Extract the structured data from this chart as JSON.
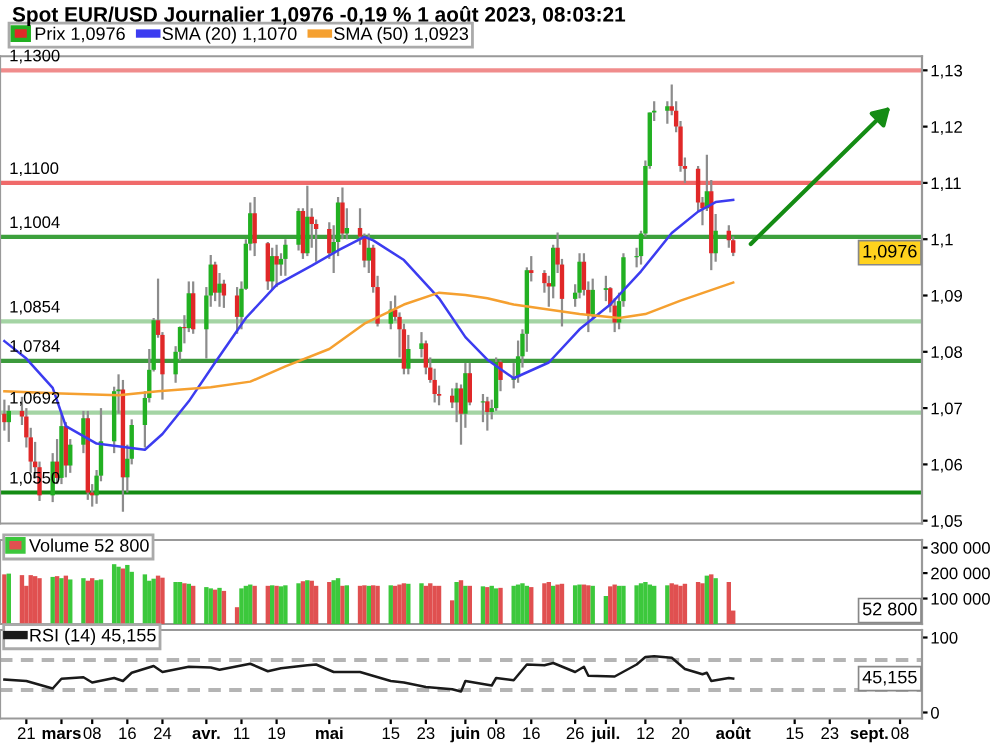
{
  "chart_data": [
    {
      "type": "candlestick",
      "title": "Spot EUR/USD Journalier 1,0976 -0,19 % 1 août 2023, 08:03:21",
      "x": [
        "2023-02-16",
        "2023-02-17",
        "2023-02-20",
        "2023-02-21",
        "2023-02-22",
        "2023-02-23",
        "2023-02-24",
        "2023-02-27",
        "2023-02-28",
        "2023-03-01",
        "2023-03-02",
        "2023-03-03",
        "2023-03-06",
        "2023-03-07",
        "2023-03-08",
        "2023-03-09",
        "2023-03-10",
        "2023-03-13",
        "2023-03-14",
        "2023-03-15",
        "2023-03-16",
        "2023-03-17",
        "2023-03-20",
        "2023-03-21",
        "2023-03-22",
        "2023-03-23",
        "2023-03-24",
        "2023-03-27",
        "2023-03-28",
        "2023-03-29",
        "2023-03-30",
        "2023-03-31",
        "2023-04-03",
        "2023-04-04",
        "2023-04-05",
        "2023-04-06",
        "2023-04-07",
        "2023-04-10",
        "2023-04-11",
        "2023-04-12",
        "2023-04-13",
        "2023-04-14",
        "2023-04-17",
        "2023-04-18",
        "2023-04-19",
        "2023-04-20",
        "2023-04-21",
        "2023-04-24",
        "2023-04-25",
        "2023-04-26",
        "2023-04-27",
        "2023-04-28",
        "2023-05-01",
        "2023-05-02",
        "2023-05-03",
        "2023-05-04",
        "2023-05-05",
        "2023-05-08",
        "2023-05-09",
        "2023-05-10",
        "2023-05-11",
        "2023-05-12",
        "2023-05-15",
        "2023-05-16",
        "2023-05-17",
        "2023-05-18",
        "2023-05-19",
        "2023-05-22",
        "2023-05-23",
        "2023-05-24",
        "2023-05-25",
        "2023-05-26",
        "2023-05-29",
        "2023-05-30",
        "2023-05-31",
        "2023-06-01",
        "2023-06-02",
        "2023-06-05",
        "2023-06-06",
        "2023-06-07",
        "2023-06-08",
        "2023-06-09",
        "2023-06-12",
        "2023-06-13",
        "2023-06-14",
        "2023-06-15",
        "2023-06-16",
        "2023-06-19",
        "2023-06-20",
        "2023-06-21",
        "2023-06-22",
        "2023-06-23",
        "2023-06-26",
        "2023-06-27",
        "2023-06-28",
        "2023-06-29",
        "2023-06-30",
        "2023-07-03",
        "2023-07-04",
        "2023-07-05",
        "2023-07-06",
        "2023-07-07",
        "2023-07-10",
        "2023-07-11",
        "2023-07-12",
        "2023-07-13",
        "2023-07-14",
        "2023-07-17",
        "2023-07-18",
        "2023-07-19",
        "2023-07-20",
        "2023-07-21",
        "2023-07-24",
        "2023-07-25",
        "2023-07-26",
        "2023-07-27",
        "2023-07-28",
        "2023-07-31",
        "2023-08-01"
      ],
      "series": [
        {
          "type": "candlestick",
          "name": "Prix 1,0976",
          "colors": [
            "#e02828",
            "#22b022",
            "#e02828",
            "#e02828",
            "#e02828",
            "#e02828",
            "#e02828",
            "#22b022",
            "#e02828",
            "#22b022",
            "#e02828",
            "#22b022",
            "#22b022",
            "#e02828",
            "#e02828",
            "#22b022",
            "#22b022",
            "#22b022",
            "#22b022",
            "#e02828",
            "#22b022",
            "#22b022",
            "#22b022",
            "#22b022",
            "#22b022",
            "#e02828",
            "#e02828",
            "#22b022",
            "#22b022",
            "#e02828",
            "#22b022",
            "#e02828",
            "#22b022",
            "#22b022",
            "#e02828",
            "#22b022",
            "#e02828",
            "#e02828",
            "#22b022",
            "#22b022",
            "#22b022",
            "#e02828",
            "#e02828",
            "#22b022",
            "#e02828",
            "#22b022",
            "#22b022",
            "#22b022",
            "#e02828",
            "#22b022",
            "#e02828",
            "#e02828",
            "#e02828",
            "#22b022",
            "#22b022",
            "#e02828",
            "#22b022",
            "#e02828",
            "#e02828",
            "#22b022",
            "#e02828",
            "#e02828",
            "#22b022",
            "#e02828",
            "#e02828",
            "#e02828",
            "#22b022",
            "#22b022",
            "#e02828",
            "#e02828",
            "#e02828",
            "#e02828",
            "#e02828",
            "#22b022",
            "#e02828",
            "#22b022",
            "#e02828",
            "#22b022",
            "#e02828",
            "#22b022",
            "#22b022",
            "#e02828",
            "#22b022",
            "#22b022",
            "#22b022",
            "#22b022",
            "#e02828",
            "#e02828",
            "#e02828",
            "#22b022",
            "#e02828",
            "#e02828",
            "#22b022",
            "#22b022",
            "#e02828",
            "#e02828",
            "#22b022",
            "#22b022",
            "#e02828",
            "#e02828",
            "#22b022",
            "#22b022",
            "#22b022",
            "#22b022",
            "#22b022",
            "#22b022",
            "#22b022",
            "#22b022",
            "#e02828",
            "#e02828",
            "#e02828",
            "#e02828",
            "#e02828",
            "#e02828",
            "#22b022",
            "#e02828",
            "#22b022",
            "#e02828",
            "#e02828"
          ],
          "ohlc": [
            [
              1.069,
              1.0715,
              1.066,
              1.0675
            ],
            [
              1.0675,
              1.0705,
              1.064,
              1.0695
            ],
            [
              1.0695,
              1.072,
              1.067,
              1.0685
            ],
            [
              1.0685,
              1.07,
              1.063,
              1.0648
            ],
            [
              1.0648,
              1.0665,
              1.0585,
              1.0605
            ],
            [
              1.0605,
              1.064,
              1.0575,
              1.0595
            ],
            [
              1.0595,
              1.0605,
              1.0535,
              1.0545
            ],
            [
              1.0545,
              1.062,
              1.0533,
              1.0605
            ],
            [
              1.0605,
              1.0645,
              1.0565,
              1.0576
            ],
            [
              1.0576,
              1.0691,
              1.0565,
              1.0668
            ],
            [
              1.0668,
              1.0675,
              1.0577,
              1.0598
            ],
            [
              1.0598,
              1.0645,
              1.0585,
              1.0635
            ],
            [
              1.0635,
              1.0695,
              1.062,
              1.0682
            ],
            [
              1.0682,
              1.0695,
              1.0537,
              1.055
            ],
            [
              1.055,
              1.0565,
              1.0525,
              1.0545
            ],
            [
              1.0545,
              1.059,
              1.053,
              1.058
            ],
            [
              1.058,
              1.07,
              1.057,
              1.0641
            ],
            [
              1.0641,
              1.0738,
              1.062,
              1.073
            ],
            [
              1.073,
              1.076,
              1.069,
              1.0733
            ],
            [
              1.0733,
              1.075,
              1.0516,
              1.0577
            ],
            [
              1.0577,
              1.0635,
              1.055,
              1.061
            ],
            [
              1.061,
              1.068,
              1.06,
              1.067
            ],
            [
              1.067,
              1.073,
              1.063,
              1.0718
            ],
            [
              1.0718,
              1.0805,
              1.071,
              1.0768
            ],
            [
              1.0768,
              1.086,
              1.0765,
              1.0856
            ],
            [
              1.0856,
              1.093,
              1.0825,
              1.083
            ],
            [
              1.083,
              1.0835,
              1.0715,
              1.076
            ],
            [
              1.076,
              1.081,
              1.0745,
              1.08
            ],
            [
              1.08,
              1.0845,
              1.0785,
              1.0844
            ],
            [
              1.0844,
              1.0865,
              1.0815,
              1.0842
            ],
            [
              1.0842,
              1.0925,
              1.0835,
              1.0904
            ],
            [
              1.0904,
              1.0925,
              1.0832,
              1.084
            ],
            [
              1.084,
              1.0915,
              1.0788,
              1.09
            ],
            [
              1.09,
              1.0972,
              1.088,
              1.0955
            ],
            [
              1.0955,
              1.096,
              1.089,
              1.0905
            ],
            [
              1.0905,
              1.094,
              1.088,
              1.0921
            ],
            [
              1.0921,
              1.0928,
              1.0878,
              1.09
            ],
            [
              1.09,
              1.0915,
              1.0832,
              1.0862
            ],
            [
              1.0862,
              1.0925,
              1.084,
              1.0912
            ],
            [
              1.0912,
              1.1,
              1.091,
              1.0992
            ],
            [
              1.0992,
              1.1065,
              1.098,
              1.1046
            ],
            [
              1.1046,
              1.1075,
              1.097,
              1.0993
            ],
            [
              1.0993,
              1.0995,
              1.091,
              1.0925
            ],
            [
              1.0925,
              1.0985,
              1.091,
              1.097
            ],
            [
              1.097,
              1.099,
              1.0915,
              1.0955
            ],
            [
              1.0955,
              1.0975,
              1.0935,
              1.0965
            ],
            [
              1.0965,
              1.1,
              1.0935,
              1.099
            ],
            [
              1.099,
              1.1055,
              1.098,
              1.105
            ],
            [
              1.105,
              1.1055,
              1.0965,
              1.0975
            ],
            [
              1.0975,
              1.1095,
              1.097,
              1.104
            ],
            [
              1.104,
              1.1055,
              1.0985,
              1.1027
            ],
            [
              1.1027,
              1.1035,
              1.096,
              1.1018
            ],
            [
              1.1018,
              1.103,
              1.0965,
              1.0975
            ],
            [
              1.0975,
              1.1025,
              1.094,
              1.0995
            ],
            [
              1.0995,
              1.1075,
              1.097,
              1.1065
            ],
            [
              1.1065,
              1.1092,
              1.1,
              1.101
            ],
            [
              1.101,
              1.1055,
              1.1,
              1.102
            ],
            [
              1.102,
              1.1055,
              1.099,
              1.1005
            ],
            [
              1.1005,
              1.101,
              1.095,
              1.0962
            ],
            [
              1.0962,
              1.101,
              1.094,
              1.0985
            ],
            [
              1.0985,
              1.099,
              1.0905,
              1.0915
            ],
            [
              1.0915,
              1.0935,
              1.0845,
              1.085
            ],
            [
              1.085,
              1.089,
              1.084,
              1.0875
            ],
            [
              1.0875,
              1.09,
              1.0855,
              1.0862
            ],
            [
              1.0862,
              1.087,
              1.079,
              1.084
            ],
            [
              1.084,
              1.085,
              1.076,
              1.077
            ],
            [
              1.077,
              1.083,
              1.076,
              1.0805
            ],
            [
              1.0805,
              1.0835,
              1.079,
              1.0815
            ],
            [
              1.0815,
              1.082,
              1.076,
              1.0772
            ],
            [
              1.0772,
              1.079,
              1.0745,
              1.075
            ],
            [
              1.075,
              1.077,
              1.071,
              1.0725
            ],
            [
              1.0725,
              1.074,
              1.0705,
              1.0722
            ],
            [
              1.0722,
              1.0735,
              1.07,
              1.071
            ],
            [
              1.071,
              1.0745,
              1.0675,
              1.0735
            ],
            [
              1.0735,
              1.0742,
              1.0635,
              1.069
            ],
            [
              1.069,
              1.078,
              1.0665,
              1.0762
            ],
            [
              1.0762,
              1.078,
              1.0705,
              1.071
            ],
            [
              1.071,
              1.0725,
              1.0675,
              1.0712
            ],
            [
              1.0712,
              1.072,
              1.066,
              1.0693
            ],
            [
              1.0693,
              1.0715,
              1.068,
              1.07
            ],
            [
              1.07,
              1.079,
              1.0695,
              1.0782
            ],
            [
              1.0782,
              1.0785,
              1.073,
              1.075
            ],
            [
              1.075,
              1.078,
              1.0735,
              1.0755
            ],
            [
              1.0755,
              1.082,
              1.0745,
              1.0792
            ],
            [
              1.0792,
              1.084,
              1.0772,
              1.0832
            ],
            [
              1.0832,
              1.095,
              1.08,
              1.0945
            ],
            [
              1.0945,
              1.097,
              1.0925,
              1.094
            ],
            [
              1.094,
              1.0945,
              1.0905,
              1.0922
            ],
            [
              1.0922,
              1.0935,
              1.088,
              1.0916
            ],
            [
              1.0916,
              1.099,
              1.0895,
              1.0985
            ],
            [
              1.0985,
              1.1012,
              1.094,
              1.0955
            ],
            [
              1.0955,
              1.0965,
              1.0845,
              1.0894
            ],
            [
              1.0894,
              1.092,
              1.088,
              1.0905
            ],
            [
              1.0905,
              1.0975,
              1.0895,
              1.096
            ],
            [
              1.096,
              1.0975,
              1.09,
              1.091
            ],
            [
              1.091,
              1.0925,
              1.0835,
              1.0866
            ],
            [
              1.0866,
              1.093,
              1.086,
              1.091
            ],
            [
              1.091,
              1.0935,
              1.089,
              1.0913
            ],
            [
              1.0913,
              1.0915,
              1.087,
              1.0882
            ],
            [
              1.0882,
              1.0895,
              1.0835,
              1.0852
            ],
            [
              1.0852,
              1.0905,
              1.084,
              1.089
            ],
            [
              1.089,
              1.0975,
              1.088,
              1.0968
            ],
            [
              1.0968,
              1.0985,
              1.095,
              1.097
            ],
            [
              1.097,
              1.1015,
              1.0955,
              1.101
            ],
            [
              1.101,
              1.114,
              1.1005,
              1.113
            ],
            [
              1.113,
              1.1225,
              1.1125,
              1.1225
            ],
            [
              1.1225,
              1.1245,
              1.121,
              1.1228
            ],
            [
              1.1228,
              1.1245,
              1.1205,
              1.1236
            ],
            [
              1.1236,
              1.1275,
              1.122,
              1.1228
            ],
            [
              1.1228,
              1.1245,
              1.119,
              1.12
            ],
            [
              1.12,
              1.121,
              1.112,
              1.113
            ],
            [
              1.113,
              1.1145,
              1.11,
              1.1125
            ],
            [
              1.1125,
              1.113,
              1.105,
              1.1065
            ],
            [
              1.1065,
              1.1075,
              1.1025,
              1.1055
            ],
            [
              1.1055,
              1.115,
              1.105,
              1.1085
            ],
            [
              1.1085,
              1.1105,
              1.0945,
              1.0975
            ],
            [
              1.0975,
              1.1045,
              1.096,
              1.1015
            ],
            [
              1.1015,
              1.1025,
              1.0985,
              1.0998
            ],
            [
              1.0998,
              1.1005,
              1.097,
              1.0976
            ]
          ]
        },
        {
          "type": "line",
          "name": "SMA (20) 1,1070",
          "color": "#3c3cf0",
          "x": [
            "2023-02-16",
            "2023-02-21",
            "2023-02-27",
            "2023-03-02",
            "2023-03-09",
            "2023-03-20",
            "2023-03-24",
            "2023-03-30",
            "2023-04-05",
            "2023-04-12",
            "2023-04-19",
            "2023-04-27",
            "2023-05-03",
            "2023-05-09",
            "2023-05-11",
            "2023-05-18",
            "2023-05-26",
            "2023-06-01",
            "2023-06-06",
            "2023-06-12",
            "2023-06-20",
            "2023-06-27",
            "2023-07-04",
            "2023-07-11",
            "2023-07-18",
            "2023-07-24",
            "2023-07-28",
            "2023-08-01"
          ],
          "values": [
            1.0819,
            1.0788,
            1.0736,
            1.0668,
            1.0637,
            1.0626,
            1.0654,
            1.0712,
            1.0781,
            1.086,
            1.0919,
            1.0953,
            1.098,
            1.1004,
            1.0998,
            1.0963,
            1.0895,
            1.0826,
            1.0786,
            1.0753,
            1.0781,
            1.084,
            1.0884,
            1.0943,
            1.1011,
            1.1049,
            1.1066,
            1.107
          ]
        },
        {
          "type": "line",
          "name": "SMA (50) 1,0923",
          "color": "#f5a030",
          "x": [
            "2023-02-16",
            "2023-03-01",
            "2023-03-14",
            "2023-03-23",
            "2023-04-04",
            "2023-04-13",
            "2023-04-21",
            "2023-05-01",
            "2023-05-09",
            "2023-05-18",
            "2023-05-26",
            "2023-06-01",
            "2023-06-06",
            "2023-06-12",
            "2023-06-27",
            "2023-07-06",
            "2023-07-12",
            "2023-07-20",
            "2023-08-01"
          ],
          "values": [
            1.073,
            1.0726,
            1.0723,
            1.073,
            1.0737,
            1.0747,
            1.0774,
            1.0805,
            1.085,
            1.0884,
            1.0905,
            1.0901,
            1.0895,
            1.0884,
            1.0867,
            1.086,
            1.0867,
            1.0891,
            1.0923
          ]
        }
      ],
      "ref_lines": [
        {
          "axis": "y",
          "value": 1.13,
          "label": "1,1300",
          "color": "#f08c8c"
        },
        {
          "axis": "y",
          "value": 1.11,
          "label": "1,1100",
          "color": "#f06a6a"
        },
        {
          "axis": "y",
          "value": 1.1004,
          "label": "1,1004",
          "color": "#3ca03c"
        },
        {
          "axis": "y",
          "value": 1.0854,
          "label": "1,0854",
          "color": "#a4d4a4"
        },
        {
          "axis": "y",
          "value": 1.0784,
          "label": "1,0784",
          "color": "#3c9a3c"
        },
        {
          "axis": "y",
          "value": 1.0692,
          "label": "1,0692",
          "color": "#a4d4a4"
        },
        {
          "axis": "y",
          "value": 1.055,
          "label": "1,0550",
          "color": "#148c14"
        }
      ],
      "annotations": [
        "1,0976"
      ],
      "xlim": [
        "2023-02-15",
        "2023-09-13"
      ],
      "ylim": [
        1.0495,
        1.1325
      ],
      "yticks": [
        {
          "value": 1.05,
          "label": "1,05"
        },
        {
          "value": 1.06,
          "label": "1,06"
        },
        {
          "value": 1.07,
          "label": "1,07"
        },
        {
          "value": 1.08,
          "label": "1,08"
        },
        {
          "value": 1.09,
          "label": "1,09"
        },
        {
          "value": 1.1,
          "label": "1,1"
        },
        {
          "value": 1.11,
          "label": "1,11"
        },
        {
          "value": 1.12,
          "label": "1,12"
        },
        {
          "value": 1.13,
          "label": "1,13"
        }
      ],
      "tick_labels": "y",
      "legend": "top"
    },
    {
      "type": "bar",
      "x": [
        "2023-02-16",
        "2023-02-17",
        "2023-02-20",
        "2023-02-21",
        "2023-02-22",
        "2023-02-23",
        "2023-02-24",
        "2023-02-27",
        "2023-02-28",
        "2023-03-01",
        "2023-03-02",
        "2023-03-03",
        "2023-03-06",
        "2023-03-07",
        "2023-03-08",
        "2023-03-09",
        "2023-03-10",
        "2023-03-13",
        "2023-03-14",
        "2023-03-15",
        "2023-03-16",
        "2023-03-17",
        "2023-03-20",
        "2023-03-21",
        "2023-03-22",
        "2023-03-23",
        "2023-03-24",
        "2023-03-27",
        "2023-03-28",
        "2023-03-29",
        "2023-03-30",
        "2023-03-31",
        "2023-04-03",
        "2023-04-04",
        "2023-04-05",
        "2023-04-06",
        "2023-04-07",
        "2023-04-10",
        "2023-04-11",
        "2023-04-12",
        "2023-04-13",
        "2023-04-14",
        "2023-04-17",
        "2023-04-18",
        "2023-04-19",
        "2023-04-20",
        "2023-04-21",
        "2023-04-24",
        "2023-04-25",
        "2023-04-26",
        "2023-04-27",
        "2023-04-28",
        "2023-05-01",
        "2023-05-02",
        "2023-05-03",
        "2023-05-04",
        "2023-05-05",
        "2023-05-08",
        "2023-05-09",
        "2023-05-10",
        "2023-05-11",
        "2023-05-12",
        "2023-05-15",
        "2023-05-16",
        "2023-05-17",
        "2023-05-18",
        "2023-05-19",
        "2023-05-22",
        "2023-05-23",
        "2023-05-24",
        "2023-05-25",
        "2023-05-26",
        "2023-05-29",
        "2023-05-30",
        "2023-05-31",
        "2023-06-01",
        "2023-06-02",
        "2023-06-05",
        "2023-06-06",
        "2023-06-07",
        "2023-06-08",
        "2023-06-09",
        "2023-06-12",
        "2023-06-13",
        "2023-06-14",
        "2023-06-15",
        "2023-06-16",
        "2023-06-19",
        "2023-06-20",
        "2023-06-21",
        "2023-06-22",
        "2023-06-23",
        "2023-06-26",
        "2023-06-27",
        "2023-06-28",
        "2023-06-29",
        "2023-06-30",
        "2023-07-03",
        "2023-07-04",
        "2023-07-05",
        "2023-07-06",
        "2023-07-07",
        "2023-07-10",
        "2023-07-11",
        "2023-07-12",
        "2023-07-13",
        "2023-07-14",
        "2023-07-17",
        "2023-07-18",
        "2023-07-19",
        "2023-07-20",
        "2023-07-21",
        "2023-07-24",
        "2023-07-25",
        "2023-07-26",
        "2023-07-27",
        "2023-07-28",
        "2023-07-31",
        "2023-08-01"
      ],
      "series": [
        {
          "name": "Volume 52 800",
          "colors": [
            "#e05050",
            "#3cc83c",
            "#e05050",
            "#e05050",
            "#e05050",
            "#e05050",
            "#e05050",
            "#3cc83c",
            "#e05050",
            "#3cc83c",
            "#e05050",
            "#3cc83c",
            "#3cc83c",
            "#e05050",
            "#e05050",
            "#3cc83c",
            "#3cc83c",
            "#3cc83c",
            "#3cc83c",
            "#e05050",
            "#3cc83c",
            "#3cc83c",
            "#3cc83c",
            "#3cc83c",
            "#3cc83c",
            "#e05050",
            "#e05050",
            "#3cc83c",
            "#3cc83c",
            "#e05050",
            "#3cc83c",
            "#e05050",
            "#3cc83c",
            "#3cc83c",
            "#e05050",
            "#3cc83c",
            "#e05050",
            "#e05050",
            "#3cc83c",
            "#3cc83c",
            "#3cc83c",
            "#e05050",
            "#e05050",
            "#3cc83c",
            "#e05050",
            "#3cc83c",
            "#3cc83c",
            "#3cc83c",
            "#e05050",
            "#3cc83c",
            "#e05050",
            "#e05050",
            "#e05050",
            "#3cc83c",
            "#3cc83c",
            "#e05050",
            "#3cc83c",
            "#e05050",
            "#e05050",
            "#3cc83c",
            "#e05050",
            "#e05050",
            "#3cc83c",
            "#e05050",
            "#e05050",
            "#e05050",
            "#3cc83c",
            "#3cc83c",
            "#e05050",
            "#e05050",
            "#e05050",
            "#e05050",
            "#e05050",
            "#3cc83c",
            "#e05050",
            "#3cc83c",
            "#e05050",
            "#3cc83c",
            "#e05050",
            "#3cc83c",
            "#3cc83c",
            "#e05050",
            "#3cc83c",
            "#3cc83c",
            "#3cc83c",
            "#3cc83c",
            "#e05050",
            "#e05050",
            "#e05050",
            "#3cc83c",
            "#e05050",
            "#e05050",
            "#3cc83c",
            "#3cc83c",
            "#e05050",
            "#e05050",
            "#3cc83c",
            "#3cc83c",
            "#e05050",
            "#e05050",
            "#3cc83c",
            "#3cc83c",
            "#3cc83c",
            "#3cc83c",
            "#3cc83c",
            "#3cc83c",
            "#3cc83c",
            "#3cc83c",
            "#e05050",
            "#e05050",
            "#e05050",
            "#e05050",
            "#e05050",
            "#e05050",
            "#3cc83c",
            "#e05050",
            "#3cc83c",
            "#e05050",
            "#e05050"
          ],
          "values": [
            195000,
            198000,
            192000,
            150000,
            192000,
            188000,
            180000,
            185000,
            188000,
            180000,
            190000,
            175000,
            180000,
            170000,
            180000,
            172000,
            175000,
            235000,
            225000,
            218000,
            232000,
            205000,
            195000,
            170000,
            178000,
            190000,
            182000,
            165000,
            165000,
            160000,
            158000,
            150000,
            145000,
            140000,
            135000,
            142000,
            130000,
            66000,
            140000,
            150000,
            155000,
            150000,
            150000,
            152000,
            150000,
            148000,
            152000,
            160000,
            168000,
            172000,
            170000,
            150000,
            165000,
            172000,
            180000,
            150000,
            152000,
            150000,
            152000,
            150000,
            152000,
            150000,
            152000,
            150000,
            155000,
            160000,
            158000,
            160000,
            150000,
            160000,
            150000,
            150000,
            93000,
            165000,
            172000,
            150000,
            150000,
            148000,
            145000,
            150000,
            140000,
            142000,
            150000,
            155000,
            160000,
            150000,
            145000,
            160000,
            165000,
            150000,
            155000,
            158000,
            152000,
            155000,
            155000,
            152000,
            150000,
            110000,
            148000,
            155000,
            150000,
            150000,
            152000,
            160000,
            165000,
            155000,
            150000,
            152000,
            160000,
            155000,
            150000,
            158000,
            165000,
            160000,
            190000,
            195000,
            180000,
            165000,
            52800
          ]
        }
      ],
      "annotations": [
        "52 800"
      ],
      "xlim": [
        "2023-02-15",
        "2023-09-13"
      ],
      "ylim": [
        0,
        330000
      ],
      "yticks": [
        {
          "value": 100000,
          "label": "100 000"
        },
        {
          "value": 200000,
          "label": "200 000"
        },
        {
          "value": 300000,
          "label": "300 000"
        }
      ],
      "tick_labels": "y",
      "legend": "top left"
    },
    {
      "type": "line",
      "series": [
        {
          "name": "RSI (14) 45,155",
          "color": "#1a1a1a",
          "x": [
            "2023-02-16",
            "2023-02-21",
            "2023-02-27",
            "2023-03-01",
            "2023-03-06",
            "2023-03-08",
            "2023-03-13",
            "2023-03-15",
            "2023-03-17",
            "2023-03-22",
            "2023-03-24",
            "2023-03-30",
            "2023-04-04",
            "2023-04-06",
            "2023-04-13",
            "2023-04-17",
            "2023-04-20",
            "2023-04-26",
            "2023-04-28",
            "2023-05-02",
            "2023-05-08",
            "2023-05-15",
            "2023-05-18",
            "2023-05-23",
            "2023-05-29",
            "2023-05-31",
            "2023-06-01",
            "2023-06-07",
            "2023-06-08",
            "2023-06-12",
            "2023-06-15",
            "2023-06-19",
            "2023-06-21",
            "2023-06-26",
            "2023-06-28",
            "2023-06-29",
            "2023-07-05",
            "2023-07-10",
            "2023-07-12",
            "2023-07-14",
            "2023-07-18",
            "2023-07-21",
            "2023-07-25",
            "2023-07-26",
            "2023-07-27",
            "2023-07-31",
            "2023-08-01"
          ],
          "values": [
            44,
            42,
            32,
            45,
            47,
            40,
            46,
            42,
            53,
            62,
            54,
            61,
            60,
            57,
            65,
            55,
            59,
            63,
            64,
            54,
            54,
            42,
            40,
            34,
            31,
            28,
            42,
            36,
            46,
            43,
            64,
            63,
            66,
            54,
            61,
            49,
            48,
            64,
            74,
            75,
            73,
            58,
            51,
            53,
            42,
            46,
            45.155
          ]
        }
      ],
      "ref_lines": [
        {
          "axis": "y",
          "value": 70,
          "label": null,
          "color": "#b4b4b4",
          "line_style": "dashed"
        },
        {
          "axis": "y",
          "value": 30,
          "label": null,
          "color": "#b4b4b4",
          "line_style": "dashed"
        }
      ],
      "annotations": [
        "45,155"
      ],
      "xlim": [
        "2023-02-15",
        "2023-09-13"
      ],
      "xticks": [
        {
          "value": "2023-02-21",
          "label": "21"
        },
        {
          "value": "2023-03-01",
          "label": "mars"
        },
        {
          "value": "2023-03-08",
          "label": "08"
        },
        {
          "value": "2023-03-16",
          "label": "16"
        },
        {
          "value": "2023-03-24",
          "label": "24"
        },
        {
          "value": "2023-04-03",
          "label": "avr."
        },
        {
          "value": "2023-04-11",
          "label": "11"
        },
        {
          "value": "2023-04-19",
          "label": "19"
        },
        {
          "value": "2023-05-01",
          "label": "mai"
        },
        {
          "value": "2023-05-15",
          "label": "15"
        },
        {
          "value": "2023-05-23",
          "label": "23"
        },
        {
          "value": "2023-06-01",
          "label": "juin"
        },
        {
          "value": "2023-06-08",
          "label": "08"
        },
        {
          "value": "2023-06-16",
          "label": "16"
        },
        {
          "value": "2023-06-26",
          "label": "26"
        },
        {
          "value": "2023-07-03",
          "label": "juil."
        },
        {
          "value": "2023-07-12",
          "label": "12"
        },
        {
          "value": "2023-07-20",
          "label": "20"
        },
        {
          "value": "2023-08-01",
          "label": "août"
        },
        {
          "value": "2023-08-15",
          "label": "15"
        },
        {
          "value": "2023-08-23",
          "label": "23"
        },
        {
          "value": "2023-09-01",
          "label": "sept."
        },
        {
          "value": "2023-09-08",
          "label": "08"
        }
      ],
      "ylim": [
        -8,
        110
      ],
      "yticks": [
        0,
        100
      ],
      "legend": "top left"
    }
  ]
}
